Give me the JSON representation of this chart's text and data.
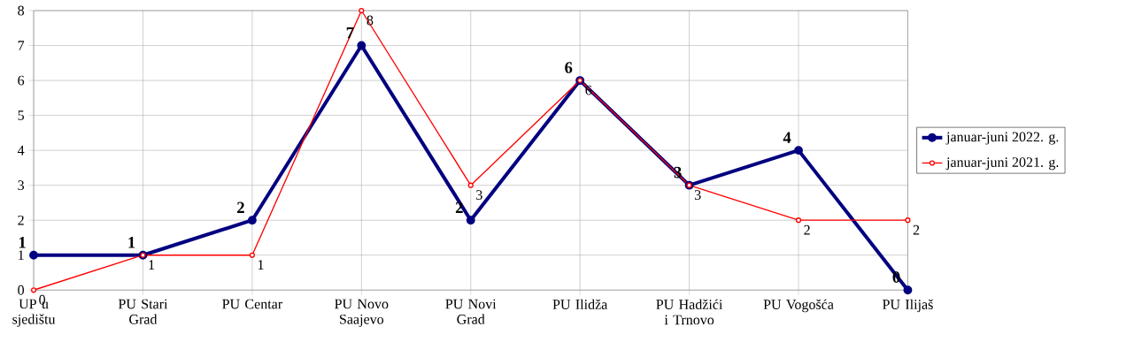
{
  "chart_data": {
    "type": "line",
    "categories": [
      "UP u sjedištu",
      "PU Stari Grad",
      "PU Centar",
      "PU Novo Saajevo",
      "PU Novi Grad",
      "PU Ilidža",
      "PU Hadžići i Trnovo",
      "PU Vogošća",
      "PU Ilijaš"
    ],
    "series": [
      {
        "name": "januar-juni 2022. g.",
        "color": "#000080",
        "values": [
          1,
          1,
          2,
          7,
          2,
          6,
          3,
          4,
          0
        ]
      },
      {
        "name": "januar-juni 2021. g.",
        "color": "#ff0000",
        "values": [
          0,
          1,
          1,
          8,
          3,
          6,
          3,
          2,
          2
        ]
      }
    ],
    "ylim": [
      0,
      8
    ],
    "yticks": [
      0,
      1,
      2,
      3,
      4,
      5,
      6,
      7,
      8
    ],
    "grid": true,
    "legend": "right",
    "marker": "circle",
    "line_style": "solid",
    "data_labels": true
  }
}
